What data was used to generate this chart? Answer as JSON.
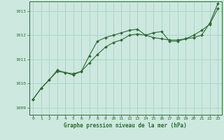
{
  "title": "Graphe pression niveau de la mer (hPa)",
  "background_color": "#cce8df",
  "grid_color": "#9ecfbe",
  "line_color": "#2d6a30",
  "xlim": [
    -0.5,
    23.5
  ],
  "ylim": [
    1008.7,
    1013.4
  ],
  "yticks": [
    1009,
    1010,
    1011,
    1012,
    1013
  ],
  "xticks": [
    0,
    1,
    2,
    3,
    4,
    5,
    6,
    7,
    8,
    9,
    10,
    11,
    12,
    13,
    14,
    15,
    16,
    17,
    18,
    19,
    20,
    21,
    22,
    23
  ],
  "series1_x": [
    0,
    1,
    2,
    3,
    4,
    5,
    6,
    7,
    8,
    9,
    10,
    11,
    12,
    13,
    14,
    15,
    16,
    17,
    18,
    19,
    20,
    21,
    22,
    23
  ],
  "series1_y": [
    1009.35,
    1009.8,
    1010.15,
    1010.55,
    1010.45,
    1010.4,
    1010.5,
    1011.15,
    1011.75,
    1011.9,
    1012.0,
    1012.1,
    1012.2,
    1012.25,
    1012.0,
    1012.1,
    1012.15,
    1011.75,
    1011.75,
    1011.85,
    1012.0,
    1012.2,
    1012.45,
    1013.1
  ],
  "series2_x": [
    0,
    1,
    2,
    3,
    4,
    5,
    6,
    7,
    8,
    9,
    10,
    11,
    12,
    13,
    14,
    15,
    16,
    17,
    18,
    19,
    20,
    21,
    22,
    23
  ],
  "series2_y": [
    1009.35,
    1009.8,
    1010.15,
    1010.5,
    1010.45,
    1010.35,
    1010.5,
    1010.85,
    1011.2,
    1011.5,
    1011.7,
    1011.8,
    1012.0,
    1012.05,
    1012.0,
    1011.9,
    1011.85,
    1011.8,
    1011.8,
    1011.85,
    1011.9,
    1012.0,
    1012.5,
    1013.3
  ]
}
